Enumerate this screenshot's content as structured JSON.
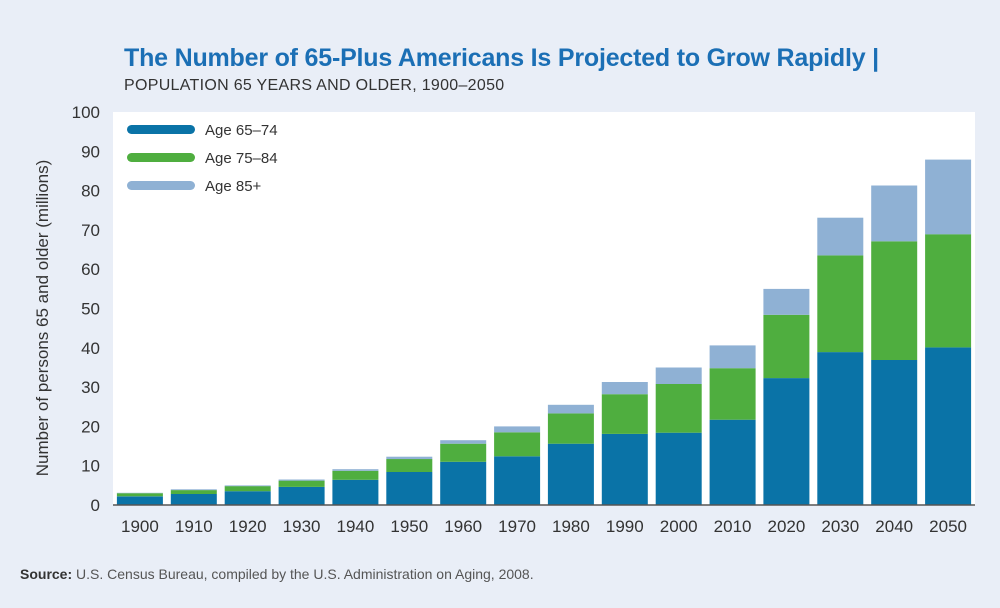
{
  "title": "The Number of 65-Plus Americans Is Projected to Grow Rapidly |",
  "subtitle": "POPULATION 65 YEARS AND OLDER, 1900–2050",
  "source": {
    "label": "Source:",
    "text": " U.S. Census Bureau, compiled by the U.S. Administration on Aging, 2008."
  },
  "colors": {
    "age_65_74": "#0a73a7",
    "age_75_84": "#4fae3f",
    "age_85_plus": "#8fb1d4",
    "plot_bg": "#ffffff",
    "title": "#1b6fb5"
  },
  "chart_data": {
    "type": "bar",
    "stacked": true,
    "title": "The Number of 65-Plus Americans Is Projected to Grow Rapidly",
    "subtitle": "POPULATION 65 YEARS AND OLDER, 1900–2050",
    "xlabel": "",
    "ylabel": "Number of persons 65 and older (millions)",
    "ylim": [
      0,
      100
    ],
    "yticks": [
      0,
      10,
      20,
      30,
      40,
      50,
      60,
      70,
      80,
      90,
      100
    ],
    "categories": [
      "1900",
      "1910",
      "1920",
      "1930",
      "1940",
      "1950",
      "1960",
      "1970",
      "1980",
      "1990",
      "2000",
      "2010",
      "2020",
      "2030",
      "2040",
      "2050"
    ],
    "legend_position": "top-left",
    "grid": false,
    "series": [
      {
        "name": "Age 65–74",
        "color": "#0a73a7",
        "values": [
          2.2,
          2.8,
          3.5,
          4.6,
          6.4,
          8.4,
          11.0,
          12.4,
          15.6,
          18.1,
          18.4,
          21.7,
          32.3,
          38.9,
          36.9,
          40.1
        ]
      },
      {
        "name": "Age 75–84",
        "color": "#4fae3f",
        "values": [
          0.8,
          1.0,
          1.3,
          1.6,
          2.3,
          3.3,
          4.6,
          6.1,
          7.7,
          10.1,
          12.4,
          13.1,
          16.1,
          24.6,
          30.2,
          28.8
        ]
      },
      {
        "name": "Age 85+",
        "color": "#8fb1d4",
        "values": [
          0.1,
          0.2,
          0.2,
          0.3,
          0.4,
          0.6,
          0.9,
          1.5,
          2.2,
          3.1,
          4.2,
          5.8,
          6.6,
          9.6,
          14.2,
          19.0
        ]
      }
    ]
  }
}
